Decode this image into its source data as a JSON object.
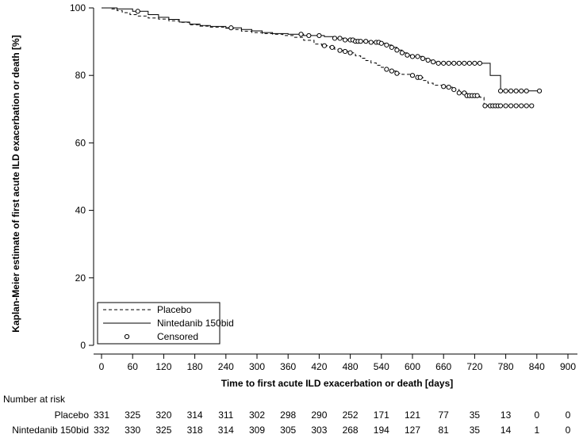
{
  "chart_data": {
    "type": "line",
    "title": "",
    "xlabel": "Time to first acute ILD exacerbation or death  [days]",
    "ylabel": "Kaplan-Meier estimate of first acute ILD exacerbation or death [%]",
    "xlim": [
      0,
      900
    ],
    "ylim": [
      0,
      100
    ],
    "x_ticks": [
      "0",
      "60",
      "120",
      "180",
      "240",
      "300",
      "360",
      "420",
      "480",
      "540",
      "600",
      "660",
      "720",
      "780",
      "840",
      "900"
    ],
    "y_ticks": [
      "0",
      "20",
      "40",
      "60",
      "80",
      "100"
    ],
    "legend": {
      "placement": "bottom-left",
      "entries": [
        "Placebo",
        "Nintedanib 150bid",
        "Censored"
      ]
    },
    "series": [
      {
        "name": "Placebo",
        "style": "dashed",
        "points": [
          [
            0,
            100
          ],
          [
            20,
            99.7
          ],
          [
            30,
            99.2
          ],
          [
            40,
            98.6
          ],
          [
            55,
            98.0
          ],
          [
            70,
            97.6
          ],
          [
            90,
            97.0
          ],
          [
            110,
            96.7
          ],
          [
            130,
            96.2
          ],
          [
            150,
            95.7
          ],
          [
            170,
            95.0
          ],
          [
            190,
            94.6
          ],
          [
            210,
            94.3
          ],
          [
            240,
            94.0
          ],
          [
            255,
            93.6
          ],
          [
            270,
            93.1
          ],
          [
            290,
            92.7
          ],
          [
            310,
            92.4
          ],
          [
            330,
            92.2
          ],
          [
            350,
            91.8
          ],
          [
            370,
            91.3
          ],
          [
            390,
            90.4
          ],
          [
            410,
            89.3
          ],
          [
            425,
            88.8
          ],
          [
            440,
            88.3
          ],
          [
            450,
            87.7
          ],
          [
            460,
            87.4
          ],
          [
            470,
            87.1
          ],
          [
            480,
            86.7
          ],
          [
            490,
            85.8
          ],
          [
            500,
            85.1
          ],
          [
            510,
            84.4
          ],
          [
            520,
            83.7
          ],
          [
            530,
            83.0
          ],
          [
            540,
            82.4
          ],
          [
            550,
            81.8
          ],
          [
            560,
            81.3
          ],
          [
            570,
            80.6
          ],
          [
            580,
            80.3
          ],
          [
            595,
            80.0
          ],
          [
            610,
            79.4
          ],
          [
            620,
            78.5
          ],
          [
            630,
            77.7
          ],
          [
            640,
            77.1
          ],
          [
            660,
            76.7
          ],
          [
            670,
            76.5
          ],
          [
            680,
            75.8
          ],
          [
            690,
            74.8
          ],
          [
            705,
            74.0
          ],
          [
            730,
            73.5
          ],
          [
            738,
            71.0
          ],
          [
            740,
            71.0
          ],
          [
            830,
            71.0
          ]
        ],
        "censored_x": [
          430,
          445,
          460,
          470,
          480,
          550,
          560,
          570,
          600,
          610,
          615,
          660,
          670,
          680,
          690,
          700,
          705,
          710,
          715,
          720,
          725,
          740,
          750,
          755,
          760,
          765,
          770,
          780,
          790,
          800,
          810,
          820,
          830
        ]
      },
      {
        "name": "Nintedanib 150bid",
        "style": "solid",
        "points": [
          [
            0,
            100
          ],
          [
            30,
            99.7
          ],
          [
            60,
            99.0
          ],
          [
            90,
            98.0
          ],
          [
            110,
            97.2
          ],
          [
            130,
            96.6
          ],
          [
            150,
            95.8
          ],
          [
            170,
            95.2
          ],
          [
            190,
            94.8
          ],
          [
            210,
            94.5
          ],
          [
            240,
            94.1
          ],
          [
            270,
            93.6
          ],
          [
            290,
            93.2
          ],
          [
            310,
            92.7
          ],
          [
            330,
            92.4
          ],
          [
            360,
            92.2
          ],
          [
            390,
            91.8
          ],
          [
            430,
            91.5
          ],
          [
            450,
            91.0
          ],
          [
            470,
            90.5
          ],
          [
            490,
            90.1
          ],
          [
            520,
            89.8
          ],
          [
            540,
            89.5
          ],
          [
            550,
            89.0
          ],
          [
            560,
            88.3
          ],
          [
            570,
            87.5
          ],
          [
            580,
            86.7
          ],
          [
            590,
            86.0
          ],
          [
            600,
            85.6
          ],
          [
            620,
            85.0
          ],
          [
            630,
            84.5
          ],
          [
            640,
            84.0
          ],
          [
            650,
            83.6
          ],
          [
            745,
            83.6
          ],
          [
            750,
            80.0
          ],
          [
            765,
            80.0
          ],
          [
            770,
            75.4
          ],
          [
            845,
            75.4
          ]
        ],
        "censored_x": [
          70,
          250,
          385,
          400,
          420,
          450,
          460,
          470,
          480,
          485,
          490,
          495,
          500,
          510,
          520,
          530,
          535,
          540,
          550,
          560,
          570,
          580,
          590,
          600,
          610,
          620,
          630,
          640,
          650,
          660,
          670,
          680,
          690,
          700,
          710,
          720,
          730,
          770,
          780,
          790,
          800,
          810,
          820,
          845
        ]
      }
    ],
    "number_at_risk": {
      "title": "Number at risk",
      "rows": [
        {
          "label": "Placebo",
          "values": [
            "331",
            "325",
            "320",
            "314",
            "311",
            "302",
            "298",
            "290",
            "252",
            "171",
            "121",
            "77",
            "35",
            "13",
            "0",
            "0"
          ]
        },
        {
          "label": "Nintedanib 150bid",
          "values": [
            "332",
            "330",
            "325",
            "318",
            "314",
            "309",
            "305",
            "303",
            "268",
            "194",
            "127",
            "81",
            "35",
            "14",
            "1",
            "0"
          ]
        }
      ]
    }
  }
}
